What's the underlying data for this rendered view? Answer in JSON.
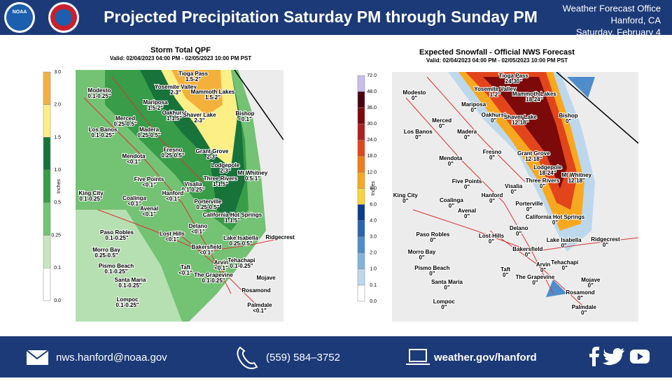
{
  "header": {
    "title": "Projected Precipitation Saturday PM through Sunday PM",
    "office": "Weather Forecast Office",
    "location": "Hanford, CA",
    "date": "Saturday, February 4",
    "logo_text": "NOAA"
  },
  "cities": [
    "Tioga Pass",
    "Yosemite Valley",
    "Mammoth Lakes",
    "Modesto",
    "Mariposa",
    "Oakhurst",
    "Shaver Lake",
    "Bishop",
    "Merced",
    "Los Banos",
    "Madera",
    "Fresno",
    "Grant Grove",
    "Mendota",
    "Lodgepole",
    "Mt Whitney",
    "Five Points",
    "Three Rivers",
    "Visalia",
    "Hanford",
    "King City",
    "Coalinga",
    "Avenal",
    "Porterville",
    "California Hot Springs",
    "Paso Robles",
    "Lost Hills",
    "Delano",
    "Lake Isabella",
    "Ridgecrest",
    "Morro Bay",
    "Bakersfield",
    "Pismo Beach",
    "Arvin",
    "Tehachapi",
    "Taft",
    "Santa Maria",
    "The Grapevine",
    "Mojave",
    "Rosamond",
    "Lompoc",
    "Palmdale"
  ],
  "left_map": {
    "title": "Storm Total QPF",
    "valid": "Valid: 02/04/2023 04:00 PM - 02/05/2023 10:00 PM PST",
    "legend_title": "Inches",
    "legend_labels": [
      "3.0",
      "2.0",
      "1.5",
      "1.0",
      "0.5",
      "0.25",
      "0.1",
      "0.0"
    ],
    "legend_colors": [
      "#f3b13c",
      "#fbef86",
      "#17733a",
      "#399c48",
      "#74c274",
      "#c7e7c1",
      "#ffffff"
    ],
    "values": [
      "1.5-2\"",
      "2-3\"",
      "1.5-2\"",
      "0.1-0.25\"",
      "1.5-2\"",
      "1-1.5\"",
      "2-3\"",
      "<0.1\"",
      "0.25-0.5\"",
      "0.1-0.25\"",
      "0.25-0.5\"",
      "0.25-0.5\"",
      "2-3\"",
      "<0.1\"",
      "2-3\"",
      "0.5-1\"",
      "<0.1\"",
      "1-1.5\"",
      "0.1-0.25\"",
      "<0.1\"",
      "0.1-0.25\"",
      "<0.1\"",
      "<0.1\"",
      "0.25-0.5\"",
      "1-1.5\"",
      "0.1-0.25\"",
      "<0.1\"",
      "<0.1\"",
      "0.25-0.5\"",
      null,
      "0.25-0.5\"",
      "<0.1\"",
      "0.1-0.25\"",
      "<0.1\"",
      "0.1-0.25\"",
      "<0.1\"",
      "0.1-0.25\"",
      "0.1-0.25\"",
      null,
      null,
      "0.1-0.25\"",
      "<0.1\""
    ]
  },
  "right_map": {
    "title": "Expected Snowfall - Official NWS Forecast",
    "valid": "Valid: 02/04/2023 04:00 PM - 02/05/2023 10:00 PM PST",
    "legend_title": "Inches",
    "legend_labels": [
      "72.0",
      "48.0",
      "36.0",
      "30.0",
      "24.0",
      "18.0",
      "12.0",
      "8.0",
      "6.0",
      "4.0",
      "3.0",
      "2.0",
      "1.0",
      "0.1",
      "0.0"
    ],
    "legend_colors": [
      "#c9bde8",
      "#4a0010",
      "#7d0a0a",
      "#b01e1e",
      "#e2451c",
      "#f27c1a",
      "#f8a81f",
      "#fbd43a",
      "#0b3d8c",
      "#2a64b0",
      "#4f8ccb",
      "#82b3dc",
      "#bdd8ec",
      "#ffffff"
    ],
    "values": [
      "24-30\"",
      "1-2\"",
      "18-24\"",
      "0\"",
      "0\"",
      "0\"",
      "12-18\"",
      "0\"",
      "0\"",
      "0\"",
      "0\"",
      "0\"",
      "12-18\"",
      "0\"",
      "18-24\"",
      "12-18\"",
      "0\"",
      "0\"",
      "0\"",
      "0\"",
      "0\"",
      "0\"",
      "0\"",
      "0\"",
      "0\"",
      "0\"",
      "0\"",
      "0\"",
      "0\"",
      "0\"",
      "0\"",
      "0\"",
      "0\"",
      "0\"",
      "0\"",
      "0\"",
      "0\"",
      "0\"",
      "0\"",
      "0\"",
      "0\"",
      "0\""
    ]
  },
  "footer": {
    "email": "nws.hanford@noaa.gov",
    "phone": "(559)  584–3752",
    "website": "weather.gov/hanford"
  }
}
